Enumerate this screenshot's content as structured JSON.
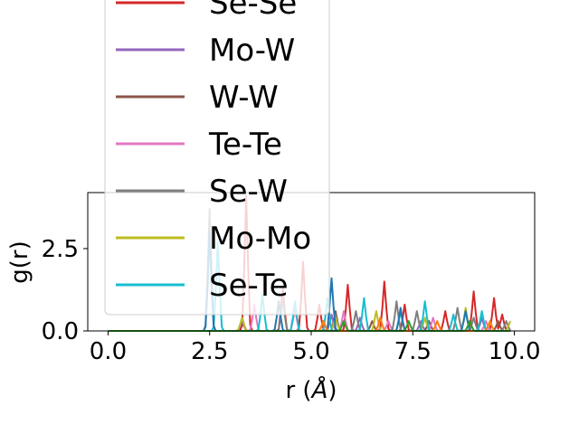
{
  "chart_data": {
    "type": "line",
    "xlabel": "r (",
    "xlabel_symbol": "Å",
    "xlabel_close": ")",
    "ylabel": "g(r)",
    "xlim": [
      -0.5,
      10.5
    ],
    "ylim": [
      0,
      4.2
    ],
    "x_ticks": [
      0.0,
      2.5,
      5.0,
      7.5,
      10.0
    ],
    "x_tick_labels": [
      "0.0",
      "2.5",
      "5.0",
      "7.5",
      "10.0"
    ],
    "y_ticks": [
      0.0,
      2.5
    ],
    "y_tick_labels": [
      "0.0",
      "2.5"
    ],
    "grid": false,
    "legend_position": "upper left, overflowing the top of the axes",
    "series": [
      {
        "name": "Se-Se",
        "color": "#d62728",
        "peaks": [
          [
            3.4,
            4.1
          ],
          [
            4.3,
            1.3
          ],
          [
            4.8,
            2.1
          ],
          [
            5.2,
            0.8
          ],
          [
            5.9,
            1.4
          ],
          [
            6.8,
            1.5
          ],
          [
            7.3,
            0.8
          ],
          [
            8.3,
            0.6
          ],
          [
            9.0,
            1.2
          ],
          [
            9.5,
            1.0
          ],
          [
            9.7,
            0.5
          ]
        ]
      },
      {
        "name": "Mo-W",
        "color": "#9467bd",
        "peaks": [
          [
            3.3,
            0.3
          ],
          [
            5.5,
            0.5
          ],
          [
            6.2,
            0.4
          ],
          [
            7.7,
            0.3
          ],
          [
            9.2,
            0.4
          ]
        ]
      },
      {
        "name": "W-W",
        "color": "#8c564b",
        "peaks": [
          [
            3.3,
            0.4
          ],
          [
            5.6,
            0.6
          ],
          [
            6.5,
            0.3
          ],
          [
            7.9,
            0.3
          ],
          [
            9.6,
            0.3
          ]
        ]
      },
      {
        "name": "Te-Te",
        "color": "#e377c2",
        "peaks": [
          [
            3.6,
            0.8
          ],
          [
            4.6,
            0.7
          ],
          [
            5.8,
            0.6
          ],
          [
            6.9,
            0.3
          ],
          [
            8.0,
            0.4
          ],
          [
            9.3,
            0.3
          ]
        ]
      },
      {
        "name": "Se-W",
        "color": "#7f7f7f",
        "peaks": [
          [
            2.5,
            3.7
          ],
          [
            4.3,
            1.0
          ],
          [
            5.6,
            0.5
          ],
          [
            6.1,
            0.6
          ],
          [
            7.1,
            0.9
          ],
          [
            7.6,
            0.6
          ],
          [
            8.6,
            0.7
          ],
          [
            9.0,
            0.4
          ],
          [
            9.8,
            0.3
          ]
        ]
      },
      {
        "name": "Mo-Mo",
        "color": "#bcbd22",
        "peaks": [
          [
            3.3,
            0.4
          ],
          [
            5.6,
            0.4
          ],
          [
            6.6,
            0.6
          ],
          [
            7.8,
            0.4
          ],
          [
            8.8,
            0.7
          ],
          [
            9.9,
            0.3
          ]
        ]
      },
      {
        "name": "Se-Te",
        "color": "#17becf",
        "peaks": [
          [
            2.7,
            2.7
          ],
          [
            3.8,
            1.1
          ],
          [
            4.6,
            0.9
          ],
          [
            5.4,
            1.0
          ],
          [
            6.3,
            1.0
          ],
          [
            7.2,
            0.6
          ],
          [
            7.8,
            0.9
          ],
          [
            8.5,
            0.5
          ],
          [
            9.2,
            0.6
          ]
        ]
      },
      {
        "name": "",
        "color": "#1f77b4",
        "peaks": [
          [
            2.5,
            3.0
          ],
          [
            4.2,
            0.9
          ],
          [
            5.5,
            1.6
          ],
          [
            7.2,
            0.7
          ],
          [
            8.8,
            0.6
          ]
        ]
      },
      {
        "name": "",
        "color": "#ff7f0e",
        "peaks": [
          [
            5.3,
            0.3
          ],
          [
            6.7,
            0.4
          ],
          [
            8.1,
            0.3
          ],
          [
            9.4,
            0.3
          ]
        ]
      },
      {
        "name": "",
        "color": "#2ca02c",
        "peaks": [
          [
            5.8,
            0.3
          ],
          [
            7.4,
            0.3
          ],
          [
            8.9,
            0.3
          ]
        ]
      }
    ]
  }
}
